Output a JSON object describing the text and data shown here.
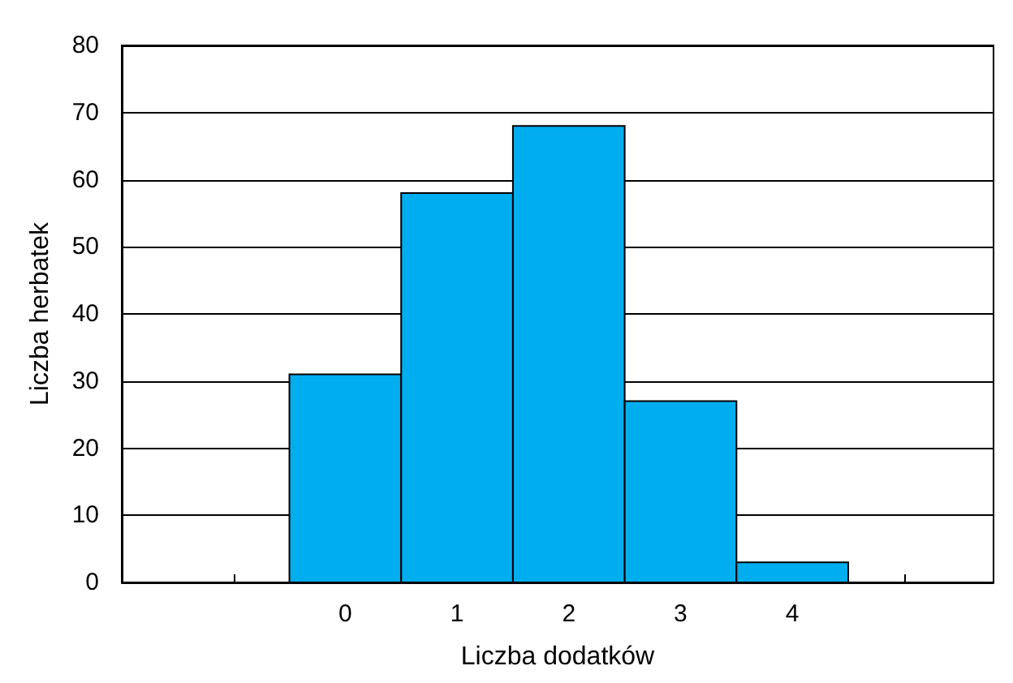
{
  "chart_data": {
    "type": "histogram",
    "xlabel": "Liczba dodatków",
    "ylabel": "Liczba herbatek",
    "bins": [
      -0.5,
      0.5,
      1.5,
      2.5,
      3.5,
      4.5
    ],
    "values": [
      31,
      58,
      68,
      27,
      3
    ],
    "color": "#00aeef",
    "xlim": [
      -2,
      5.8
    ],
    "xticks": [
      {
        "value": -1,
        "label": null
      },
      0,
      1,
      2,
      3,
      4,
      {
        "value": 5,
        "label": null
      }
    ],
    "ylim": [
      0,
      80
    ],
    "yticks": [
      0,
      10,
      20,
      30,
      40,
      50,
      60,
      70,
      80
    ],
    "grid": "y"
  }
}
